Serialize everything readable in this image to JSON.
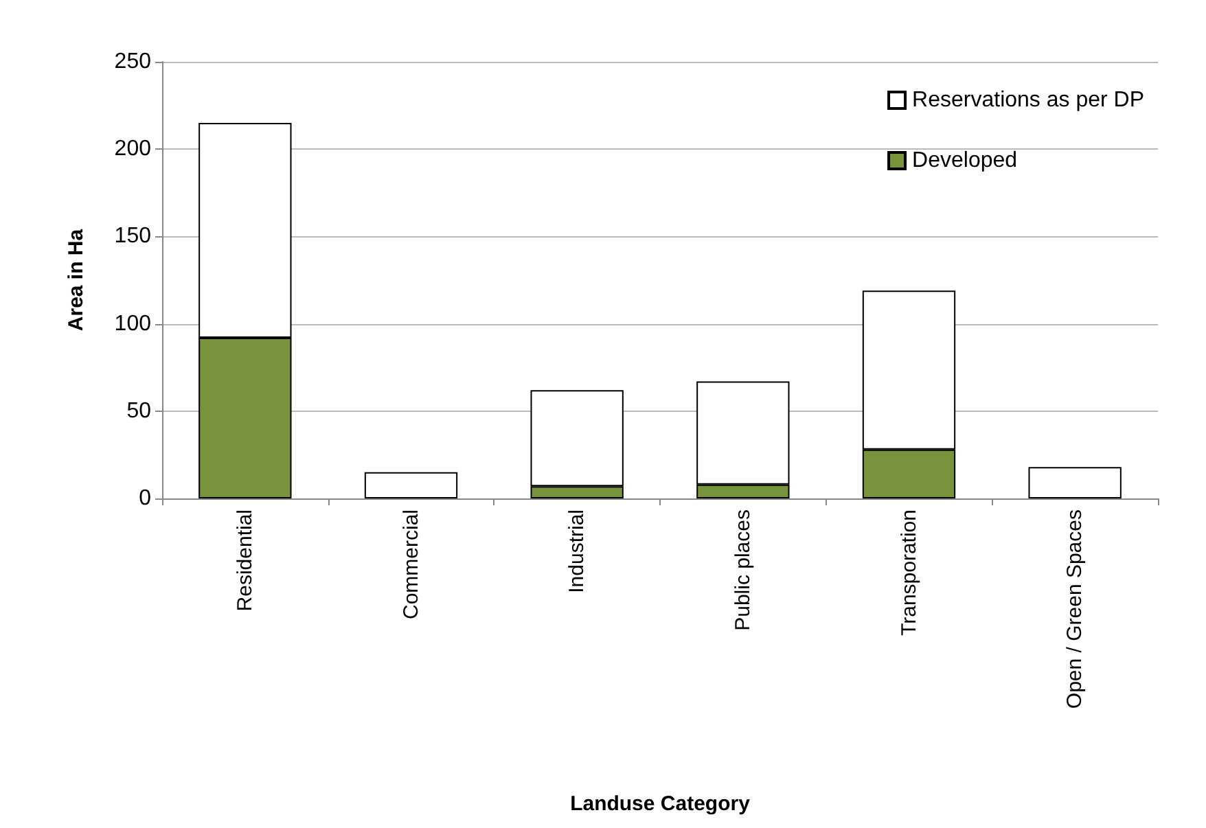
{
  "chart_data": {
    "type": "bar",
    "xlabel": "Landuse Category",
    "ylabel": "Area in Ha",
    "categories": [
      "Residential",
      "Commercial",
      "Industrial",
      "Public places",
      "Transporation",
      "Open / Green Spaces"
    ],
    "stacked": true,
    "series": [
      {
        "name": "Developed",
        "color": "#77933c",
        "values": [
          92,
          0,
          7,
          8,
          28,
          0
        ]
      },
      {
        "name": "Reservations as per DP",
        "color": "#ffffff",
        "values": [
          123,
          15,
          55,
          59,
          91,
          18
        ]
      }
    ],
    "ylim": [
      0,
      250
    ],
    "yticks": [
      0,
      50,
      100,
      150,
      200,
      250
    ],
    "grid": "y",
    "legend": "top right"
  }
}
